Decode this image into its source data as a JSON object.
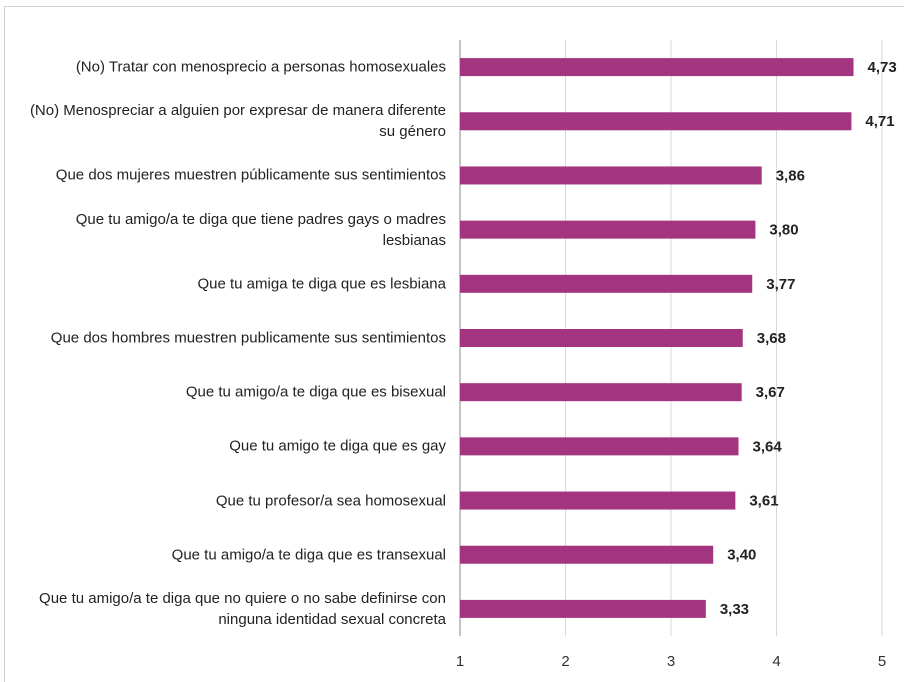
{
  "chart_data": {
    "type": "barh",
    "categories": [
      "(No) Tratar con menosprecio a personas homosexuales",
      "(No) Menospreciar a alguien por expresar de manera diferente su género",
      "Que dos mujeres muestren públicamente sus sentimientos",
      "Que tu amigo/a te diga que tiene padres gays o madres lesbianas",
      "Que tu amiga te diga que es lesbiana",
      "Que dos hombres muestren publicamente sus sentimientos",
      "Que tu amigo/a te diga que es bisexual",
      "Que tu amigo te diga que es gay",
      "Que tu profesor/a sea homosexual",
      "Que tu amigo/a te diga que es transexual",
      "Que tu amigo/a te diga que no quiere o no sabe definirse con ninguna identidad sexual concreta"
    ],
    "values": [
      4.73,
      4.71,
      3.86,
      3.8,
      3.77,
      3.68,
      3.67,
      3.64,
      3.61,
      3.4,
      3.33
    ],
    "value_labels": [
      "4,73",
      "4,71",
      "3,86",
      "3,80",
      "3,77",
      "3,68",
      "3,67",
      "3,64",
      "3,61",
      "3,40",
      "3,33"
    ],
    "color": "#a3347f",
    "xlim": [
      1,
      5
    ],
    "xticks": [
      1,
      2,
      3,
      4,
      5
    ],
    "grid": true
  }
}
